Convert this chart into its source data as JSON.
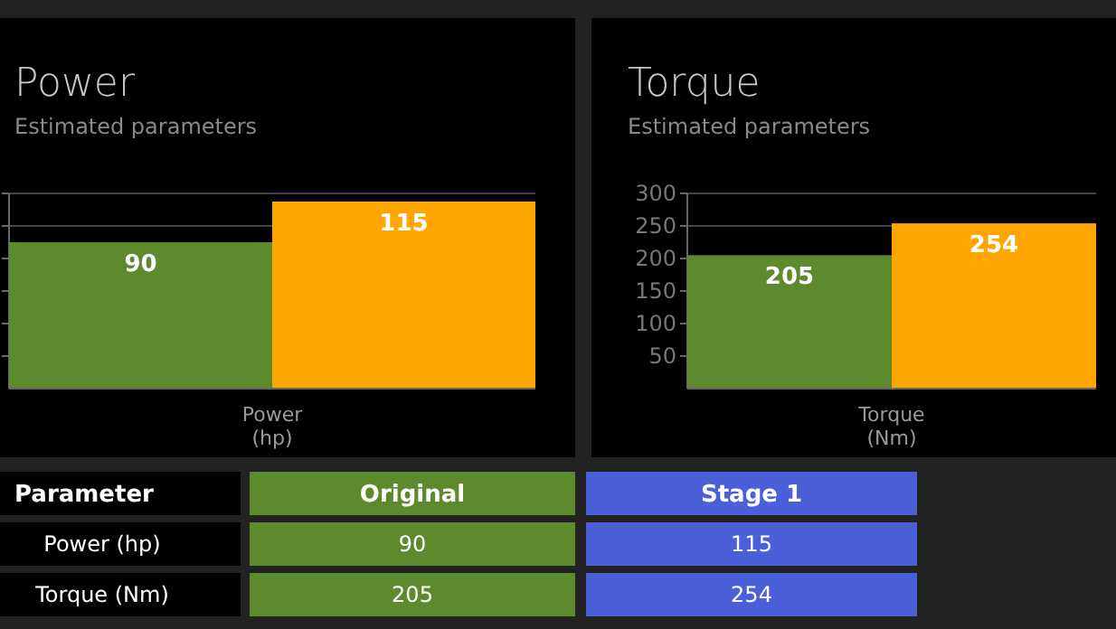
{
  "chart_data": [
    {
      "type": "bar",
      "title": "Power",
      "subtitle": "Estimated parameters",
      "xlabel": "Power (hp)",
      "categories": [
        null,
        null
      ],
      "values": [
        90,
        115
      ],
      "colors": [
        "#5e8a2e",
        "#ffa500"
      ],
      "ylim": [
        0,
        120
      ],
      "yticks": [
        {
          "value": 20,
          "label": null
        },
        {
          "value": 40,
          "label": null
        },
        {
          "value": 60,
          "label": null
        },
        {
          "value": 80,
          "label": null
        },
        {
          "value": 100,
          "label": null
        },
        {
          "value": 120,
          "label": null
        }
      ],
      "grid": "y",
      "tick_labels": false,
      "data_labels": true
    },
    {
      "type": "bar",
      "title": "Torque",
      "subtitle": "Estimated parameters",
      "xlabel": "Torque (Nm)",
      "categories": [
        null,
        null
      ],
      "values": [
        205,
        254
      ],
      "colors": [
        "#5e8a2e",
        "#ffa500"
      ],
      "ylim": [
        0,
        300
      ],
      "yticks": [
        50,
        100,
        150,
        200,
        250,
        300
      ],
      "grid": "y",
      "tick_labels": "y",
      "data_labels": true
    },
    {
      "type": "other",
      "ylabel": "Parameter",
      "categories": [
        "Original",
        "Stage 1"
      ],
      "y_categories": [
        "Power (hp)",
        "Torque (Nm)"
      ],
      "cell_labels": [
        [
          "90",
          "115"
        ],
        [
          "205",
          "254"
        ]
      ],
      "colors": [
        "#5e8a2e",
        "#4a5fd8"
      ]
    }
  ]
}
